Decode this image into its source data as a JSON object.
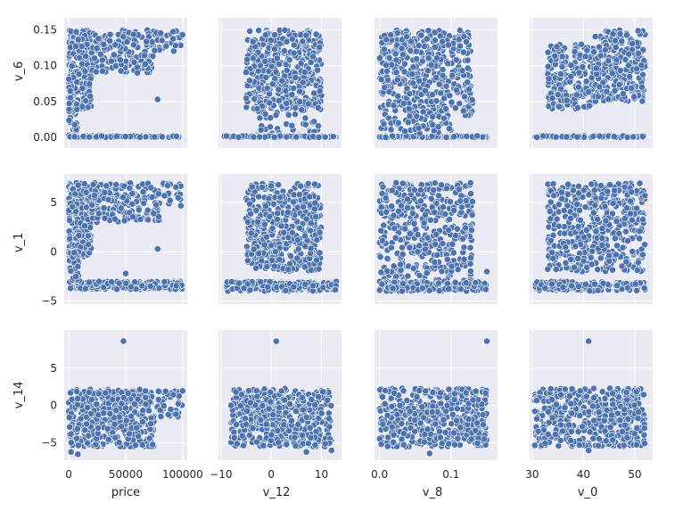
{
  "chart_data": {
    "type": "scatter",
    "layout": "pairplot-3x4",
    "grid": true,
    "colors": {
      "panel": "#eaeaf2",
      "grid": "#ffffff",
      "point": "#4c72b0",
      "point_edge": "#ffffff"
    },
    "columns": [
      {
        "key": "price",
        "label": "price",
        "range": [
          -4000,
          104000
        ],
        "ticks": [
          0,
          50000,
          100000
        ],
        "tick_labels": [
          "0",
          "50000",
          "100000"
        ]
      },
      {
        "key": "v_12",
        "label": "v_12",
        "range": [
          -10.5,
          14
        ],
        "ticks": [
          -10,
          0,
          10
        ],
        "tick_labels": [
          "−10",
          "0",
          "10"
        ]
      },
      {
        "key": "v_8",
        "label": "v_8",
        "range": [
          -0.007,
          0.165
        ],
        "ticks": [
          0.0,
          0.1
        ],
        "tick_labels": [
          "0.0",
          "0.1"
        ]
      },
      {
        "key": "v_0",
        "label": "v_0",
        "range": [
          29.5,
          53.5
        ],
        "ticks": [
          30,
          40,
          50
        ],
        "tick_labels": [
          "30",
          "40",
          "50"
        ]
      }
    ],
    "rows": [
      {
        "key": "v_6",
        "label": "v_6",
        "range": [
          -0.015,
          0.167
        ],
        "ticks": [
          0.0,
          0.05,
          0.1,
          0.15
        ],
        "tick_labels": [
          "0.00",
          "0.05",
          "0.10",
          "0.15"
        ]
      },
      {
        "key": "v_1",
        "label": "v_1",
        "range": [
          -5.3,
          7.9
        ],
        "ticks": [
          -5,
          0,
          5
        ],
        "tick_labels": [
          "−5",
          "0",
          "5"
        ]
      },
      {
        "key": "v_14",
        "label": "v_14",
        "range": [
          -7.3,
          10.1
        ],
        "ticks": [
          -5,
          0,
          5
        ],
        "tick_labels": [
          "−5",
          "0",
          "5"
        ]
      }
    ],
    "panels": [
      [
        {
          "x": "price",
          "y": "v_6",
          "clusters": [
            {
              "x": [
                0,
                20000
              ],
              "y": [
                0.04,
                0.15
              ],
              "n": 260
            },
            {
              "x": [
                20000,
                75000
              ],
              "y": [
                0.09,
                0.15
              ],
              "n": 160
            },
            {
              "x": [
                75000,
                100000
              ],
              "y": [
                0.12,
                0.15
              ],
              "n": 30
            },
            {
              "x": [
                0,
                100000
              ],
              "y": [
                0.0,
                0.002
              ],
              "n": 140
            },
            {
              "x": [
                0,
                8000
              ],
              "y": [
                0.0,
                0.05
              ],
              "n": 40
            }
          ],
          "points": [
            [
              78000,
              0.053
            ]
          ]
        },
        {
          "x": "v_12",
          "y": "v_6",
          "clusters": [
            {
              "x": [
                -5,
                10
              ],
              "y": [
                0.04,
                0.15
              ],
              "n": 420
            },
            {
              "x": [
                -3,
                10
              ],
              "y": [
                0.0,
                0.05
              ],
              "n": 60
            },
            {
              "x": [
                -9.5,
                13
              ],
              "y": [
                0.0,
                0.002
              ],
              "n": 140
            }
          ],
          "points": []
        },
        {
          "x": "v_8",
          "y": "v_6",
          "clusters": [
            {
              "x": [
                0,
                0.13
              ],
              "y": [
                0.03,
                0.15
              ],
              "n": 420
            },
            {
              "x": [
                0,
                0.15
              ],
              "y": [
                0.0,
                0.002
              ],
              "n": 120
            },
            {
              "x": [
                0,
                0.1
              ],
              "y": [
                0.005,
                0.03
              ],
              "n": 50
            }
          ],
          "points": []
        },
        {
          "x": "v_0",
          "y": "v_6",
          "clusters": [
            {
              "x": [
                33,
                42
              ],
              "y": [
                0.04,
                0.13
              ],
              "n": 220
            },
            {
              "x": [
                42,
                52
              ],
              "y": [
                0.05,
                0.15
              ],
              "n": 240
            },
            {
              "x": [
                30.5,
                52
              ],
              "y": [
                0.0,
                0.002
              ],
              "n": 120
            }
          ],
          "points": []
        }
      ],
      [
        {
          "x": "price",
          "y": "v_1",
          "clusters": [
            {
              "x": [
                0,
                20000
              ],
              "y": [
                -0.5,
                7
              ],
              "n": 260
            },
            {
              "x": [
                20000,
                80000
              ],
              "y": [
                3,
                7
              ],
              "n": 170
            },
            {
              "x": [
                80000,
                100000
              ],
              "y": [
                4.5,
                7
              ],
              "n": 20
            },
            {
              "x": [
                0,
                100000
              ],
              "y": [
                -3.8,
                -3
              ],
              "n": 200
            },
            {
              "x": [
                0,
                10000
              ],
              "y": [
                -3,
                0
              ],
              "n": 40
            }
          ],
          "points": [
            [
              78000,
              0.3
            ],
            [
              50000,
              -2.2
            ]
          ]
        },
        {
          "x": "v_12",
          "y": "v_1",
          "clusters": [
            {
              "x": [
                -5,
                10
              ],
              "y": [
                -2,
                7
              ],
              "n": 450
            },
            {
              "x": [
                -9,
                13
              ],
              "y": [
                -4,
                -3
              ],
              "n": 180
            }
          ],
          "points": []
        },
        {
          "x": "v_8",
          "y": "v_1",
          "clusters": [
            {
              "x": [
                0,
                0.13
              ],
              "y": [
                -3.5,
                7
              ],
              "n": 450
            },
            {
              "x": [
                0,
                0.15
              ],
              "y": [
                -4,
                -3
              ],
              "n": 160
            }
          ],
          "points": [
            [
              0.15,
              -2.0
            ]
          ]
        },
        {
          "x": "v_0",
          "y": "v_1",
          "clusters": [
            {
              "x": [
                33,
                52
              ],
              "y": [
                -2,
                7
              ],
              "n": 450
            },
            {
              "x": [
                30.5,
                52
              ],
              "y": [
                -4,
                -3
              ],
              "n": 160
            }
          ],
          "points": []
        }
      ],
      [
        {
          "x": "price",
          "y": "v_14",
          "clusters": [
            {
              "x": [
                0,
                75000
              ],
              "y": [
                -5.5,
                2.2
              ],
              "n": 420
            },
            {
              "x": [
                75000,
                100000
              ],
              "y": [
                -1.5,
                2
              ],
              "n": 40
            }
          ],
          "points": [
            [
              48000,
              8.6
            ],
            [
              8000,
              -6.5
            ],
            [
              2000,
              -6.2
            ]
          ]
        },
        {
          "x": "v_12",
          "y": "v_14",
          "clusters": [
            {
              "x": [
                -8,
                12
              ],
              "y": [
                -5.5,
                2.3
              ],
              "n": 450
            }
          ],
          "points": [
            [
              1,
              8.6
            ],
            [
              12,
              -6
            ],
            [
              7,
              -6.2
            ]
          ]
        },
        {
          "x": "v_8",
          "y": "v_14",
          "clusters": [
            {
              "x": [
                0,
                0.15
              ],
              "y": [
                -5.5,
                2.3
              ],
              "n": 450
            }
          ],
          "points": [
            [
              0.15,
              8.6
            ],
            [
              0.07,
              -6.4
            ]
          ]
        },
        {
          "x": "v_0",
          "y": "v_14",
          "clusters": [
            {
              "x": [
                30.5,
                52
              ],
              "y": [
                -5.5,
                2.3
              ],
              "n": 450
            }
          ],
          "points": [
            [
              41,
              8.6
            ],
            [
              41,
              -6
            ]
          ]
        }
      ]
    ]
  }
}
